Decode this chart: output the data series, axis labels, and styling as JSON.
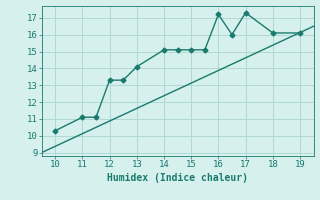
{
  "xlabel": "Humidex (Indice chaleur)",
  "bg_color": "#d5f0ed",
  "grid_color": "#b0d8d3",
  "line_color": "#1a7a6e",
  "curve_x": [
    10,
    11,
    11.5,
    12,
    12.5,
    13,
    14,
    14.5,
    15,
    15.5,
    16,
    16.5,
    17,
    18,
    19
  ],
  "curve_y": [
    10.3,
    11.1,
    11.1,
    13.3,
    13.3,
    14.1,
    15.1,
    15.1,
    15.1,
    15.1,
    17.2,
    16.0,
    17.3,
    16.1,
    16.1
  ],
  "line_x": [
    9.5,
    19.5
  ],
  "line_y": [
    9.0,
    16.5
  ],
  "xlim": [
    9.5,
    19.5
  ],
  "ylim": [
    8.8,
    17.7
  ],
  "xticks": [
    10,
    11,
    12,
    13,
    14,
    15,
    16,
    17,
    18,
    19
  ],
  "yticks": [
    9,
    10,
    11,
    12,
    13,
    14,
    15,
    16,
    17
  ],
  "marker": "D",
  "marker_size": 2.5,
  "linewidth": 1.0
}
